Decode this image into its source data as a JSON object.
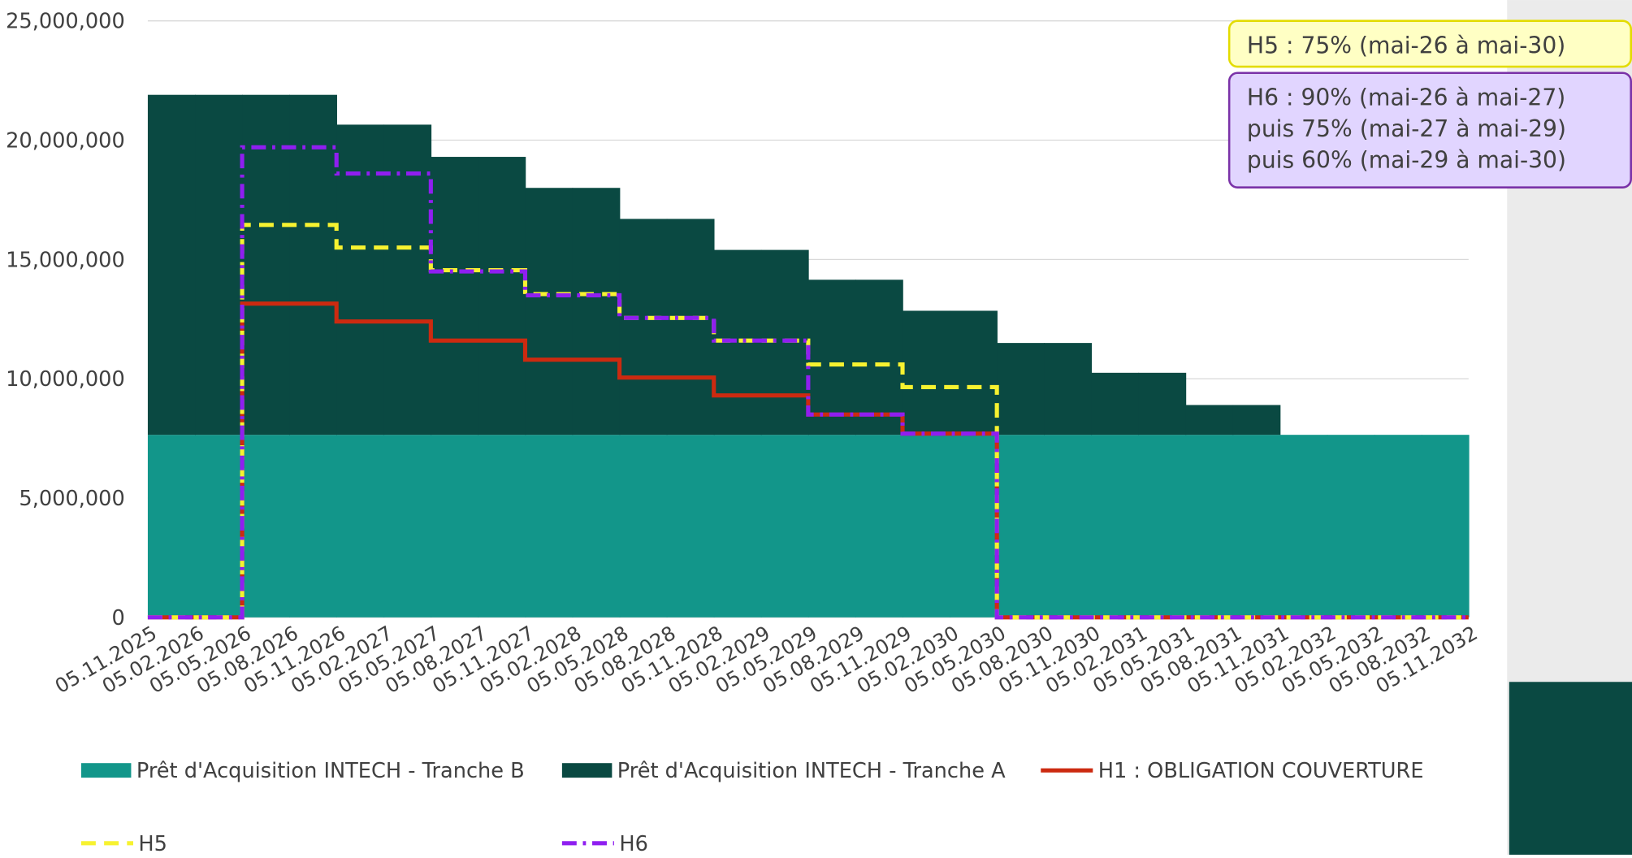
{
  "chart_data": {
    "type": "step-area",
    "categories": [
      "05.11.2025",
      "05.02.2026",
      "05.05.2026",
      "05.08.2026",
      "05.11.2026",
      "05.02.2027",
      "05.05.2027",
      "05.08.2027",
      "05.11.2027",
      "05.02.2028",
      "05.05.2028",
      "05.08.2028",
      "05.11.2028",
      "05.02.2029",
      "05.05.2029",
      "05.08.2029",
      "05.11.2029",
      "05.02.2030",
      "05.05.2030",
      "05.08.2030",
      "05.11.2030",
      "05.02.2031",
      "05.05.2031",
      "05.08.2031",
      "05.11.2031",
      "05.02.2032",
      "05.05.2032",
      "05.08.2032",
      "05.11.2032"
    ],
    "series": [
      {
        "name": "Prêt d'Acquisition INTECH - Tranche B",
        "kind": "area",
        "color": "#12968a",
        "values": [
          7650000,
          7650000,
          7650000,
          7650000,
          7650000,
          7650000,
          7650000,
          7650000,
          7650000,
          7650000,
          7650000,
          7650000,
          7650000,
          7650000,
          7650000,
          7650000,
          7650000,
          7650000,
          7650000,
          7650000,
          7650000,
          7650000,
          7650000,
          7650000,
          7650000,
          7650000,
          7650000,
          7650000,
          7650000
        ]
      },
      {
        "name": "Prêt d'Acquisition INTECH - Tranche A",
        "kind": "area",
        "color": "#0a4942",
        "values": [
          14250000,
          14250000,
          14250000,
          14250000,
          13000000,
          13000000,
          11650000,
          11650000,
          10350000,
          10350000,
          9050000,
          9050000,
          7750000,
          7750000,
          6500000,
          6500000,
          5200000,
          5200000,
          3850000,
          3850000,
          2600000,
          2600000,
          1250000,
          1250000,
          0,
          0,
          0,
          0,
          0
        ]
      },
      {
        "name": "H1 : OBLIGATION COUVERTURE",
        "kind": "line",
        "color": "#cc2a10",
        "dash": "solid",
        "values": [
          0,
          0,
          13150000,
          13150000,
          12400000,
          12400000,
          11600000,
          11600000,
          10800000,
          10800000,
          10050000,
          10050000,
          9300000,
          9300000,
          8500000,
          8500000,
          7700000,
          7700000,
          0,
          0,
          0,
          0,
          0,
          0,
          0,
          0,
          0,
          0,
          0
        ]
      },
      {
        "name": "H5",
        "kind": "line",
        "color": "#f7f230",
        "dash": "dashed",
        "values": [
          0,
          0,
          16450000,
          16450000,
          15500000,
          15500000,
          14550000,
          14550000,
          13550000,
          13550000,
          12550000,
          12550000,
          11600000,
          11600000,
          10600000,
          10600000,
          9650000,
          9650000,
          0,
          0,
          0,
          0,
          0,
          0,
          0,
          0,
          0,
          0,
          0
        ]
      },
      {
        "name": "H6",
        "kind": "line",
        "color": "#8f1ff0",
        "dash": "dashdot",
        "values": [
          0,
          0,
          19700000,
          19700000,
          18600000,
          18600000,
          14500000,
          14500000,
          13500000,
          13500000,
          12550000,
          12550000,
          11600000,
          11600000,
          8500000,
          8500000,
          7700000,
          7700000,
          0,
          0,
          0,
          0,
          0,
          0,
          0,
          0,
          0,
          0,
          0
        ]
      }
    ],
    "ylim": [
      0,
      25000000
    ],
    "yticks": [
      0,
      {
        "value": 5000000,
        "label": "5,000,000"
      },
      {
        "value": 10000000,
        "label": "10,000,000"
      },
      {
        "value": 15000000,
        "label": "15,000,000"
      },
      {
        "value": 20000000,
        "label": "20,000,000"
      },
      {
        "value": 25000000,
        "label": "25,000,000"
      }
    ],
    "grid": true,
    "legend": "bottom",
    "annotations": [
      {
        "lines": [
          "H5 : 75% (mai-26 à mai-30)"
        ],
        "color": "#ffffc4",
        "border": "#e3dc00"
      },
      {
        "lines": [
          "H6 : 90% (mai-26 à mai-27)",
          "puis 75% (mai-27 à mai-29)",
          "puis 60% (mai-29 à mai-30)"
        ],
        "color": "#e1d5ff",
        "border": "#7a32a8"
      }
    ]
  }
}
